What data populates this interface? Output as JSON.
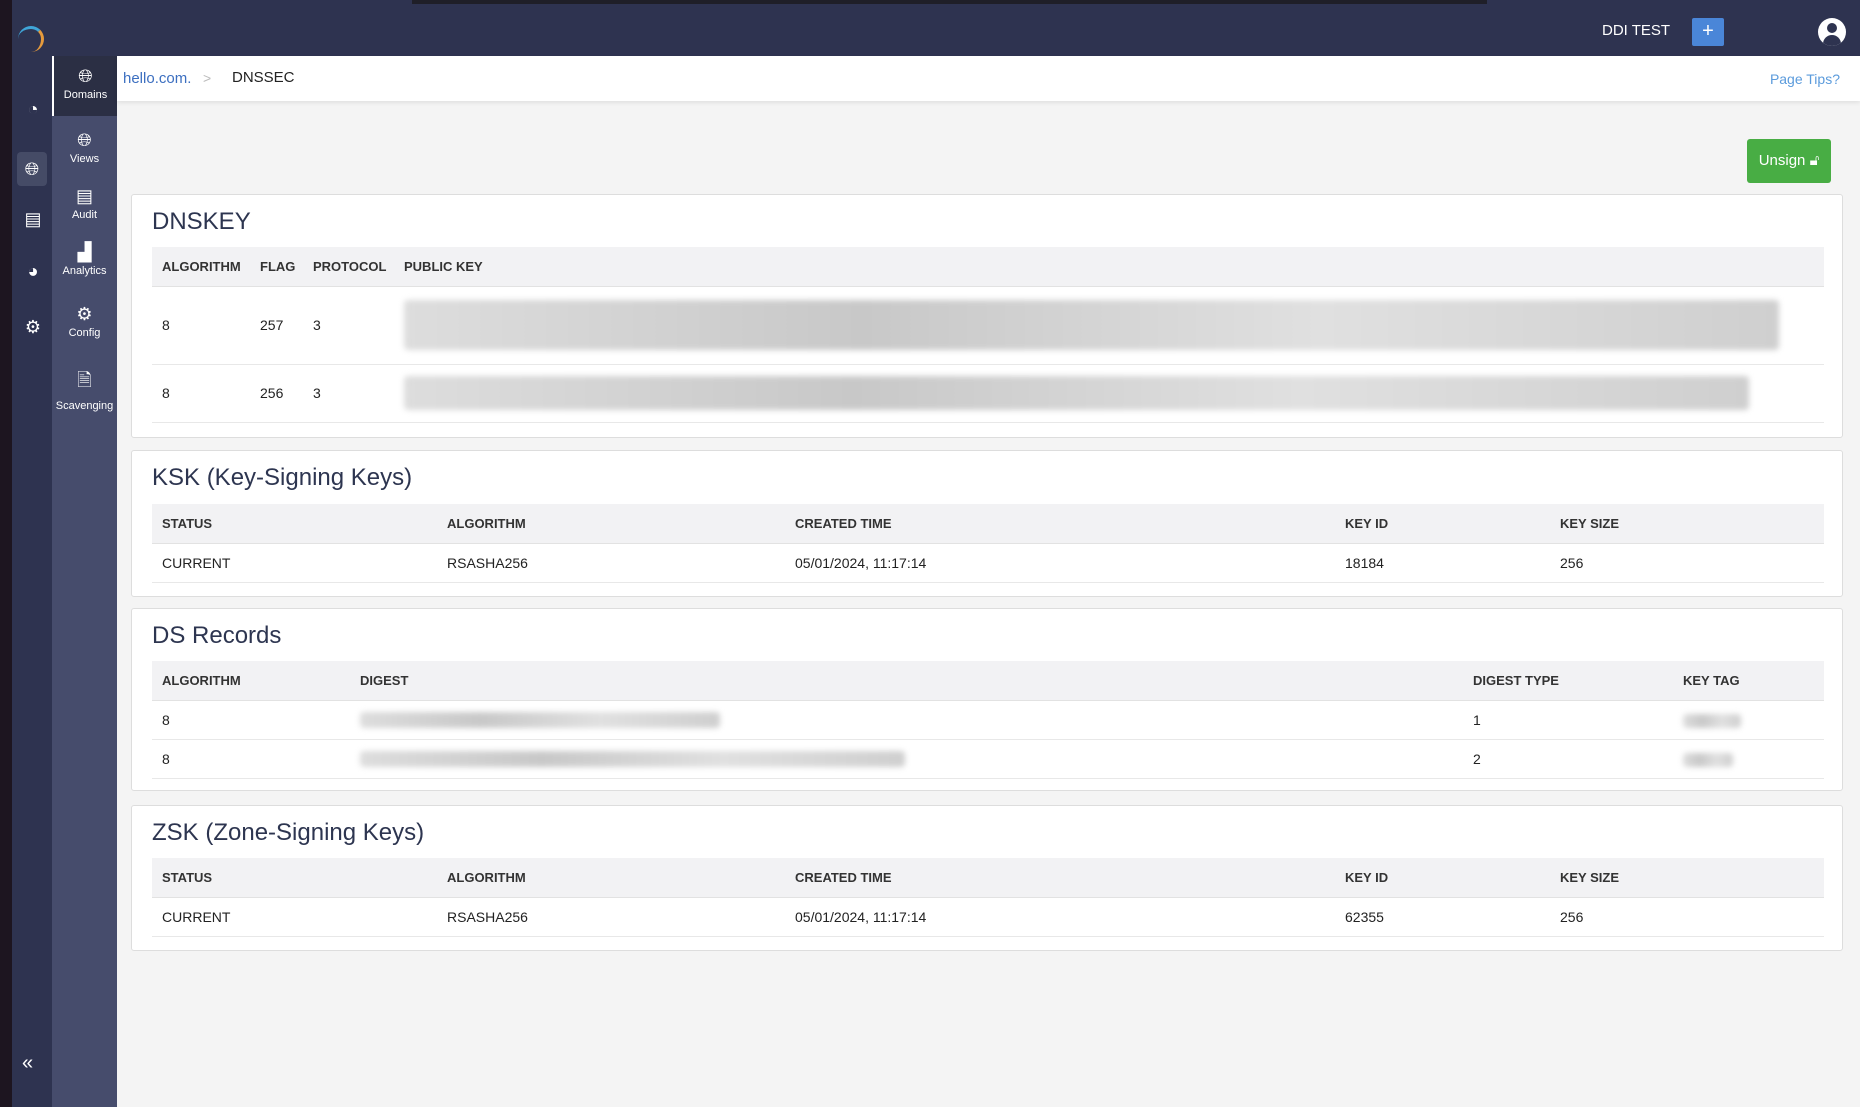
{
  "header": {
    "org": "DDI TEST",
    "add_label": "+"
  },
  "rail": {
    "icons": [
      "dashboard-icon",
      "dns-icon",
      "ipam-icon",
      "reports-icon",
      "settings-icon"
    ]
  },
  "sidebar": {
    "items": [
      {
        "label": "Domains",
        "active": true
      },
      {
        "label": "Views"
      },
      {
        "label": "Audit"
      },
      {
        "label": "Analytics"
      },
      {
        "label": "Config"
      },
      {
        "label": "Scavenging"
      }
    ],
    "collapse": "«"
  },
  "breadcrumb": {
    "parent": "hello.com.",
    "separator": ">",
    "current": "DNSSEC",
    "tips": "Page Tips?"
  },
  "unsign_label": "Unsign",
  "colors": {
    "topbar": "#2e3350",
    "sidebar": "#464c6c",
    "unsign": "#48ad44",
    "accent": "#4a86d8"
  },
  "dnskey": {
    "title": "DNSKEY",
    "headers": [
      "ALGORITHM",
      "FLAG",
      "PROTOCOL",
      "PUBLIC KEY"
    ],
    "rows": [
      [
        "8",
        "257",
        "3"
      ],
      [
        "8",
        "256",
        "3"
      ]
    ]
  },
  "ksk": {
    "title": "KSK (Key-Signing Keys)",
    "headers": [
      "STATUS",
      "ALGORITHM",
      "CREATED TIME",
      "KEY ID",
      "KEY SIZE"
    ],
    "rows": [
      [
        "CURRENT",
        "RSASHA256",
        "05/01/2024, 11:17:14",
        "18184",
        "256"
      ]
    ]
  },
  "ds": {
    "title": "DS Records",
    "headers": [
      "ALGORITHM",
      "DIGEST",
      "DIGEST TYPE",
      "KEY TAG"
    ],
    "rows": [
      [
        "8",
        "1"
      ],
      [
        "8",
        "2"
      ]
    ]
  },
  "zsk": {
    "title": "ZSK (Zone-Signing Keys)",
    "headers": [
      "STATUS",
      "ALGORITHM",
      "CREATED TIME",
      "KEY ID",
      "KEY SIZE"
    ],
    "rows": [
      [
        "CURRENT",
        "RSASHA256",
        "05/01/2024, 11:17:14",
        "62355",
        "256"
      ]
    ]
  }
}
